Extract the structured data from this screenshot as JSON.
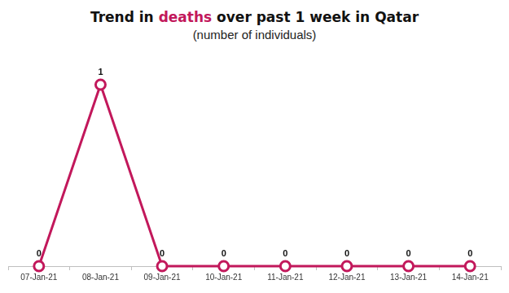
{
  "chart_data": {
    "type": "line",
    "title": "Trend in deaths over past 1 week in Qatar",
    "subtitle": "(number of individuals)",
    "categories": [
      "07-Jan-21",
      "08-Jan-21",
      "09-Jan-21",
      "10-Jan-21",
      "11-Jan-21",
      "12-Jan-21",
      "13-Jan-21",
      "14-Jan-21"
    ],
    "values": [
      0,
      1,
      0,
      0,
      0,
      0,
      0,
      0
    ],
    "color": "#c2185b",
    "marker": "circle",
    "ylim": [
      0,
      1
    ],
    "grid": false,
    "data_labels": true,
    "tick_labels": "x"
  }
}
